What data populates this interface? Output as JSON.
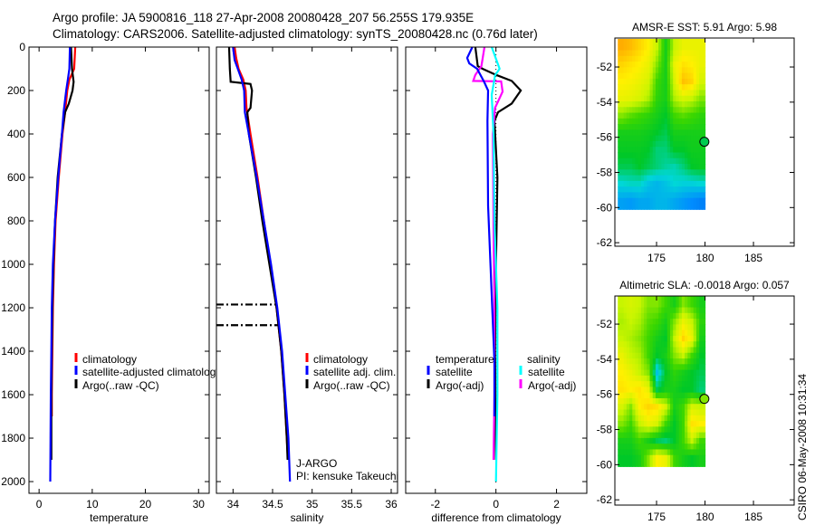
{
  "title_line1": "Argo profile: JA 5900816_118 27-Apr-2008 20080428_207 56.255S 179.935E",
  "title_line2": "Climatology: CARS2006. Satellite-adjusted climatology: synTS_20080428.nc (0.76d later)",
  "timestamp": "CSIRO 06-May-2008 10:31:34",
  "colors": {
    "climatology": "#ff0000",
    "satellite": "#0000ff",
    "argo": "#000000",
    "sal_satellite": "#00ffff",
    "sal_argo": "#ff00ff"
  },
  "chart_data": [
    {
      "type": "line",
      "id": "temperature",
      "xlabel": "temperature",
      "ylabel": "",
      "xlim": [
        -1.9,
        32
      ],
      "ylim": [
        0,
        2054
      ],
      "y_reversed": true,
      "xticks": [
        0,
        10,
        20,
        30
      ],
      "yticks": [
        0,
        200,
        400,
        600,
        800,
        1000,
        1200,
        1400,
        1600,
        1800,
        2000
      ],
      "legend": [
        {
          "label": "climatology",
          "color": "#ff0000"
        },
        {
          "label": "satellite-adjusted climatology",
          "color": "#0000ff"
        },
        {
          "label": "Argo(..raw -QC)",
          "color": "#000000"
        }
      ],
      "series": [
        {
          "name": "climatology",
          "color": "#ff0000",
          "depth": [
            0,
            100,
            150,
            200,
            300,
            400,
            600,
            800,
            1000,
            1200,
            1400,
            1600,
            1700
          ],
          "values": [
            6.8,
            6.6,
            5.7,
            5.3,
            4.9,
            4.4,
            3.7,
            3.1,
            2.8,
            2.6,
            2.5,
            2.4,
            2.4
          ]
        },
        {
          "name": "Argo(..raw -QC)",
          "color": "#000000",
          "depth": [
            0,
            100,
            160,
            200,
            260,
            300,
            400,
            600,
            800,
            1000,
            1200,
            1400,
            1600,
            1900
          ],
          "values": [
            6.0,
            6.2,
            6.5,
            6.3,
            5.6,
            4.9,
            4.3,
            3.5,
            3.0,
            2.7,
            2.5,
            2.4,
            2.3,
            2.3
          ]
        },
        {
          "name": "satellite-adjusted climatology",
          "color": "#0000ff",
          "depth": [
            0,
            100,
            150,
            200,
            300,
            400,
            600,
            800,
            1000,
            1200,
            1400,
            1600,
            1800,
            2000
          ],
          "values": [
            5.8,
            5.7,
            5.4,
            5.1,
            4.6,
            4.3,
            3.6,
            3.0,
            2.6,
            2.4,
            2.3,
            2.2,
            2.15,
            2.1
          ]
        }
      ]
    },
    {
      "type": "line",
      "id": "salinity",
      "xlabel": "salinity",
      "xlim": [
        33.79,
        36.08
      ],
      "ylim": [
        0,
        2054
      ],
      "y_reversed": true,
      "xticks": [
        34,
        34.5,
        35,
        35.5,
        36
      ],
      "yticks": [
        0,
        200,
        400,
        600,
        800,
        1000,
        1200,
        1400,
        1600,
        1800,
        2000
      ],
      "legend": [
        {
          "label": "climatology",
          "color": "#ff0000"
        },
        {
          "label": "satellite adj. clim.",
          "color": "#0000ff"
        },
        {
          "label": "Argo(..raw -QC)",
          "color": "#000000"
        }
      ],
      "annotations": [
        "J-ARGO",
        "PI: kensuke Takeuchi"
      ],
      "flag_depths": [
        1185,
        1280
      ],
      "series": [
        {
          "name": "climatology",
          "color": "#ff0000",
          "depth": [
            0,
            50,
            100,
            150,
            200,
            280,
            400,
            600,
            800,
            1000,
            1200,
            1400,
            1600,
            1800,
            1870
          ],
          "values": [
            34.02,
            34.04,
            34.07,
            34.13,
            34.16,
            34.17,
            34.22,
            34.31,
            34.39,
            34.47,
            34.55,
            34.61,
            34.65,
            34.68,
            34.69
          ]
        },
        {
          "name": "Argo(..raw -QC)",
          "color": "#000000",
          "depth": [
            0,
            100,
            160,
            170,
            200,
            280,
            300,
            400,
            600,
            800,
            1000,
            1200,
            1400,
            1600,
            1800,
            1900
          ],
          "values": [
            33.95,
            33.96,
            33.97,
            34.22,
            34.24,
            34.22,
            34.18,
            34.2,
            34.29,
            34.37,
            34.46,
            34.55,
            34.61,
            34.65,
            34.68,
            34.69
          ]
        },
        {
          "name": "satellite adj. clim.",
          "color": "#0000ff",
          "depth": [
            0,
            60,
            100,
            150,
            200,
            300,
            400,
            600,
            800,
            1000,
            1200,
            1400,
            1600,
            1800,
            2000
          ],
          "values": [
            34.0,
            34.02,
            34.06,
            34.11,
            34.14,
            34.15,
            34.2,
            34.3,
            34.39,
            34.48,
            34.56,
            34.62,
            34.66,
            34.7,
            34.72
          ]
        }
      ]
    },
    {
      "type": "line",
      "id": "difference",
      "xlabel": "difference from climatology",
      "xlim": [
        -2.98,
        3.0
      ],
      "ylim": [
        0,
        2054
      ],
      "y_reversed": true,
      "xticks": [
        -2,
        0,
        2
      ],
      "yticks": [
        0,
        200,
        400,
        600,
        800,
        1000,
        1200,
        1400,
        1600,
        1800,
        2000
      ],
      "legend_headers": [
        "temperature",
        "salinity"
      ],
      "legend": [
        {
          "label": "satellite",
          "color": "#0000ff",
          "group": "temperature"
        },
        {
          "label": "Argo(-adj)",
          "color": "#000000",
          "group": "temperature"
        },
        {
          "label": "satellite",
          "color": "#00ffff",
          "group": "salinity"
        },
        {
          "label": "Argo(-adj)",
          "color": "#ff00ff",
          "group": "salinity"
        }
      ],
      "series": [
        {
          "name": "temperature Argo(-adj)",
          "color": "#000000",
          "depth": [
            0,
            88,
            100,
            128,
            156,
            200,
            260,
            300,
            340,
            600,
            1000,
            1400,
            1900
          ],
          "values": [
            -0.68,
            -0.6,
            -0.44,
            0.0,
            0.52,
            0.82,
            0.52,
            0.07,
            -0.05,
            0.05,
            0.0,
            -0.03,
            0.0
          ]
        },
        {
          "name": "salinity Argo(-adj)",
          "color": "#ff00ff",
          "depth": [
            0,
            88,
            128,
            156,
            158,
            205,
            280,
            400,
            800,
            1200,
            1600,
            1900
          ],
          "values": [
            -0.38,
            -0.48,
            -0.68,
            -0.75,
            0.17,
            0.22,
            -0.03,
            -0.1,
            -0.08,
            -0.05,
            -0.05,
            -0.08
          ]
        },
        {
          "name": "salinity satellite",
          "color": "#00ffff",
          "depth": [
            0,
            100,
            130,
            220,
            400,
            800,
            1200,
            1600,
            2000
          ],
          "values": [
            -0.14,
            0.12,
            -0.03,
            -0.14,
            -0.08,
            -0.05,
            0.05,
            0.05,
            0.0
          ]
        },
        {
          "name": "temperature satellite",
          "color": "#0000ff",
          "depth": [
            0,
            50,
            75,
            100,
            160,
            200,
            340,
            730,
            1100,
            1450,
            1700
          ],
          "values": [
            -0.78,
            -0.95,
            -0.88,
            -0.62,
            -0.39,
            -0.26,
            -0.28,
            -0.26,
            -0.15,
            -0.05,
            -0.05
          ]
        }
      ]
    },
    {
      "type": "heatmap",
      "id": "sst-map",
      "title": "AMSR-E SST: 5.91 Argo: 5.98",
      "xlim": [
        170.7,
        189.2
      ],
      "ylim": [
        -62.2,
        -50.35
      ],
      "xticks": [
        175,
        180,
        185
      ],
      "yticks": [
        -52,
        -54,
        -56,
        -58,
        -60,
        -62
      ],
      "grid_lon": [
        171,
        180
      ],
      "grid_lat": [
        -50.4,
        -60.1
      ],
      "float_position": {
        "lon": 179.935,
        "lat": -56.255,
        "value": 0.4
      },
      "values": [
        [
          0.78,
          0.76,
          0.72,
          0.68,
          0.6,
          0.45,
          0.6,
          0.65,
          0.65,
          0.65
        ],
        [
          0.72,
          0.7,
          0.68,
          0.65,
          0.55,
          0.45,
          0.65,
          0.7,
          0.68,
          0.65
        ],
        [
          0.68,
          0.67,
          0.65,
          0.62,
          0.5,
          0.45,
          0.62,
          0.75,
          0.72,
          0.62
        ],
        [
          0.65,
          0.64,
          0.62,
          0.58,
          0.48,
          0.45,
          0.58,
          0.62,
          0.6,
          0.55
        ],
        [
          0.55,
          0.52,
          0.5,
          0.48,
          0.45,
          0.42,
          0.5,
          0.52,
          0.5,
          0.48
        ],
        [
          0.45,
          0.45,
          0.45,
          0.44,
          0.42,
          0.4,
          0.45,
          0.45,
          0.45,
          0.45
        ],
        [
          0.43,
          0.43,
          0.43,
          0.42,
          0.38,
          0.38,
          0.42,
          0.42,
          0.44,
          0.44
        ],
        [
          0.4,
          0.4,
          0.42,
          0.4,
          0.38,
          0.36,
          0.35,
          0.38,
          0.42,
          0.43
        ],
        [
          0.33,
          0.34,
          0.34,
          0.3,
          0.28,
          0.3,
          0.33,
          0.32,
          0.32,
          0.33
        ],
        [
          0.25,
          0.24,
          0.26,
          0.26,
          0.28,
          0.28,
          0.26,
          0.24,
          0.22,
          0.2
        ]
      ]
    },
    {
      "type": "heatmap",
      "id": "sla-map",
      "title": "Altimetric SLA: -0.0018 Argo: 0.057",
      "xlim": [
        170.7,
        189.2
      ],
      "ylim": [
        -62.3,
        -50.4
      ],
      "xticks": [
        175,
        180,
        185
      ],
      "yticks": [
        -52,
        -54,
        -56,
        -58,
        -60,
        -62
      ],
      "grid_lon": [
        171,
        180
      ],
      "grid_lat": [
        -50.4,
        -60.1
      ],
      "float_position": {
        "lon": 179.935,
        "lat": -56.255,
        "value": 0.55
      },
      "values": [
        [
          0.6,
          0.62,
          0.6,
          0.55,
          0.55,
          0.5,
          0.45,
          0.55,
          0.5,
          0.45
        ],
        [
          0.58,
          0.6,
          0.58,
          0.52,
          0.5,
          0.45,
          0.55,
          0.65,
          0.6,
          0.48
        ],
        [
          0.6,
          0.58,
          0.55,
          0.5,
          0.45,
          0.42,
          0.6,
          0.72,
          0.65,
          0.45
        ],
        [
          0.65,
          0.6,
          0.58,
          0.5,
          0.42,
          0.45,
          0.55,
          0.6,
          0.5,
          0.42
        ],
        [
          0.68,
          0.65,
          0.6,
          0.55,
          0.3,
          0.42,
          0.48,
          0.45,
          0.42,
          0.4
        ],
        [
          0.7,
          0.68,
          0.7,
          0.65,
          0.4,
          0.45,
          0.45,
          0.42,
          0.42,
          0.38
        ],
        [
          0.62,
          0.55,
          0.68,
          0.72,
          0.7,
          0.62,
          0.45,
          0.5,
          0.62,
          0.6
        ],
        [
          0.55,
          0.5,
          0.6,
          0.65,
          0.62,
          0.5,
          0.42,
          0.5,
          0.7,
          0.68
        ],
        [
          0.45,
          0.45,
          0.5,
          0.45,
          0.4,
          0.38,
          0.42,
          0.5,
          0.6,
          0.5
        ],
        [
          0.42,
          0.42,
          0.45,
          0.55,
          0.68,
          0.65,
          0.5,
          0.45,
          0.42,
          0.45
        ]
      ]
    }
  ]
}
